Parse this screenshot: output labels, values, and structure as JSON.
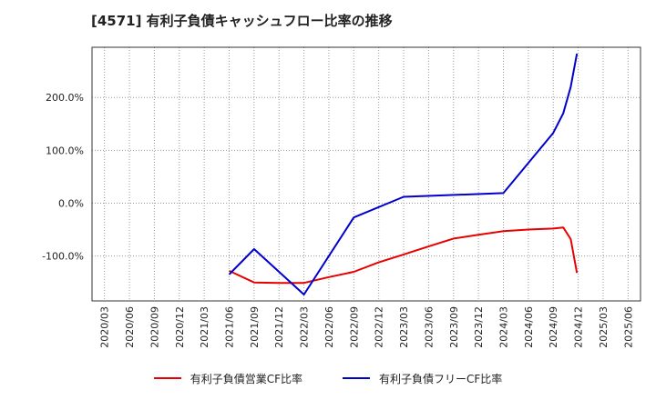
{
  "chart_data": {
    "type": "line",
    "title": "[4571]  有利子負債キャッシュフロー比率の推移",
    "xlabel": "",
    "ylabel": "",
    "ylim": [
      -185,
      295
    ],
    "y_ticks": [
      -100,
      0,
      100,
      200
    ],
    "y_tick_labels": [
      "-100.0%",
      "0.0%",
      "100.0%",
      "200.0%"
    ],
    "x_tick_labels": [
      "2020/03",
      "2020/06",
      "2020/09",
      "2020/12",
      "2021/03",
      "2021/06",
      "2021/09",
      "2021/12",
      "2022/03",
      "2022/06",
      "2022/09",
      "2022/12",
      "2023/03",
      "2023/06",
      "2023/09",
      "2023/12",
      "2024/03",
      "2024/06",
      "2024/09",
      "2024/12",
      "2025/03",
      "2025/06"
    ],
    "grid": true,
    "legend_position": "bottom",
    "series": [
      {
        "name": "有利子負債営業CF比率",
        "color": "#e60000",
        "x": [
          5.0,
          6.0,
          7.0,
          8.0,
          9.0,
          10.0,
          11.0,
          12.0,
          13.0,
          14.0,
          15.0,
          16.0,
          17.0,
          18.0,
          18.4,
          18.7,
          18.95
        ],
        "y": [
          -128,
          -150,
          -151,
          -151,
          -140,
          -130,
          -112,
          -97,
          -82,
          -67,
          -60,
          -53,
          -50,
          -48,
          -46,
          -68,
          -132
        ]
      },
      {
        "name": "有利子負債フリーCF比率",
        "color": "#0000cc",
        "x": [
          5.0,
          6.0,
          8.0,
          10.0,
          12.0,
          16.0,
          18.0,
          18.4,
          18.7,
          18.95
        ],
        "y": [
          -135,
          -87,
          -173,
          -27,
          12,
          19,
          133,
          170,
          220,
          283
        ]
      }
    ]
  }
}
